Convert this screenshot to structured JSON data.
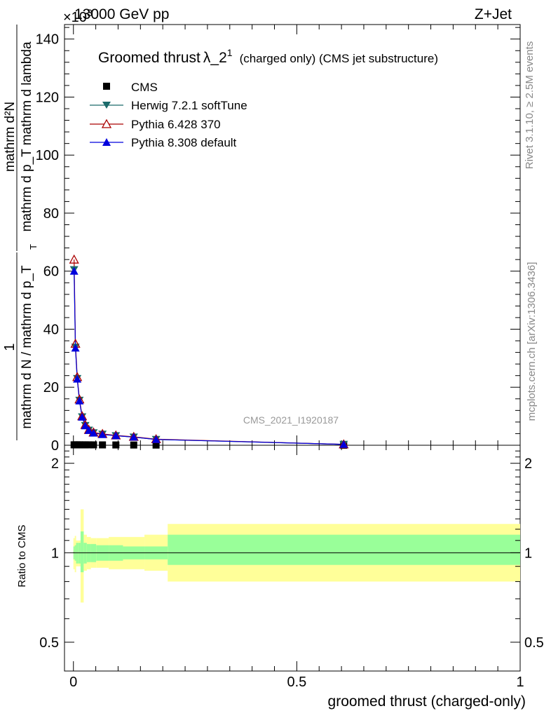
{
  "header": {
    "energy": "13000 GeV pp",
    "process": "Z+Jet",
    "exponent": "×10",
    "exponent_power": "3",
    "rivet": "Rivet 3.1.10, ≥ 2.5M events",
    "mcplots": "mcplots.cern.ch [arXiv:1306.3436]",
    "analysis": "CMS_2021_I1920187"
  },
  "title": {
    "main": "Groomed thrust",
    "lambda": "λ_2",
    "superscript": "1",
    "suffix": "(charged only) (CMS jet substructure)"
  },
  "ylabel_main": {
    "prefix": "1",
    "prefix_den": "mathrm d N / mathrm d p_T",
    "num": "mathrm d²N",
    "den": "mathrm d p_T mathrm d lambda",
    "subscript": "T"
  },
  "ylabel_ratio": "Ratio to CMS",
  "xlabel": "groomed thrust (charged-only)",
  "colors": {
    "herwig": "#1a6b6b",
    "pythia6": "#aa0000",
    "pythia8": "#0000dd",
    "band_outer": "#ffff99",
    "band_inner": "#99ff99"
  },
  "chart_data": [
    {
      "type": "line",
      "panel": "main",
      "xlim": [
        -0.02,
        1.0
      ],
      "ylim": [
        0,
        145
      ],
      "yticks": [
        0,
        20,
        40,
        60,
        80,
        100,
        120,
        140
      ],
      "ytick_labels": [
        "0",
        "20",
        "40",
        "60",
        "80",
        "100",
        "120",
        "140"
      ],
      "x": [
        0.0015,
        0.0045,
        0.0085,
        0.0135,
        0.0195,
        0.0265,
        0.0345,
        0.045,
        0.065,
        0.095,
        0.135,
        0.185,
        0.605
      ],
      "series": [
        {
          "name": "CMS",
          "marker": "square",
          "values": [
            0.14,
            0.14,
            0.14,
            0.14,
            0.14,
            0.14,
            0.14,
            0.13,
            0.12,
            0.1,
            0.08,
            0.06,
            0.01
          ]
        },
        {
          "name": "Herwig 7.2.1 softTune",
          "marker": "triangle-down",
          "values": [
            60.5,
            33.8,
            23.0,
            15.5,
            9.8,
            6.8,
            5.2,
            4.3,
            3.8,
            3.3,
            2.8,
            2.0,
            0.3
          ]
        },
        {
          "name": "Pythia 6.428 370",
          "marker": "triangle-up-open",
          "values": [
            64.0,
            35.0,
            23.5,
            15.8,
            10.0,
            7.0,
            5.3,
            4.4,
            3.9,
            3.4,
            2.9,
            2.1,
            0.3
          ]
        },
        {
          "name": "Pythia 8.308 default",
          "marker": "triangle-up",
          "values": [
            60.0,
            33.5,
            22.8,
            15.3,
            9.7,
            6.7,
            5.1,
            4.2,
            3.7,
            3.3,
            2.8,
            2.0,
            0.3
          ]
        }
      ]
    },
    {
      "type": "area",
      "panel": "ratio",
      "xlim": [
        -0.02,
        1.0
      ],
      "ylim": [
        0.4,
        2.3
      ],
      "yticks": [
        0.5,
        1,
        2
      ],
      "ytick_labels": [
        "0.5",
        "1",
        "2"
      ],
      "xticks": [
        0,
        0.5,
        1
      ],
      "xtick_labels": [
        "0",
        "0.5",
        "1"
      ],
      "bins": [
        0,
        0.003,
        0.006,
        0.011,
        0.016,
        0.023,
        0.03,
        0.039,
        0.051,
        0.079,
        0.111,
        0.159,
        0.211,
        1.0
      ],
      "outer_band": [
        [
          0.88,
          1.12
        ],
        [
          0.86,
          1.14
        ],
        [
          0.9,
          1.1
        ],
        [
          0.9,
          1.1
        ],
        [
          0.68,
          1.4
        ],
        [
          0.87,
          1.15
        ],
        [
          0.88,
          1.13
        ],
        [
          0.89,
          1.12
        ],
        [
          0.89,
          1.12
        ],
        [
          0.88,
          1.13
        ],
        [
          0.88,
          1.13
        ],
        [
          0.87,
          1.15
        ],
        [
          0.8,
          1.25
        ]
      ],
      "inner_band": [
        [
          0.95,
          1.05
        ],
        [
          0.94,
          1.06
        ],
        [
          0.92,
          1.08
        ],
        [
          0.92,
          1.08
        ],
        [
          0.86,
          1.18
        ],
        [
          0.92,
          1.08
        ],
        [
          0.93,
          1.07
        ],
        [
          0.93,
          1.07
        ],
        [
          0.94,
          1.06
        ],
        [
          0.94,
          1.06
        ],
        [
          0.95,
          1.05
        ],
        [
          0.95,
          1.05
        ],
        [
          0.91,
          1.15
        ]
      ],
      "reference": 1.0
    }
  ]
}
